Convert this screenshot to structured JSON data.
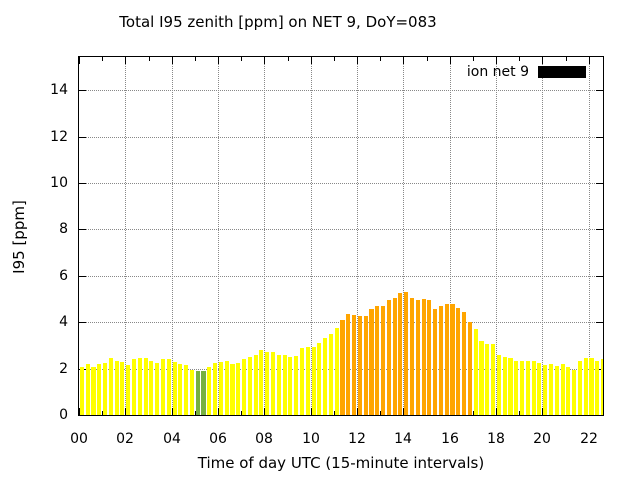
{
  "chart_data": {
    "type": "bar",
    "title": "Total I95 zenith [ppm] on NET 9, DoY=083",
    "xlabel": "Time of day UTC (15-minute intervals)",
    "ylabel": "I95 [ppm]",
    "grid": true,
    "ylim": [
      0,
      15.43
    ],
    "xlim_hours": [
      0,
      22.62
    ],
    "interval_minutes": 15,
    "legend": {
      "label": "ion net 9",
      "position": "top-right",
      "swatch_color": "#000000"
    },
    "y_tick_values": [
      0,
      2,
      4,
      6,
      8,
      10,
      12,
      14
    ],
    "y_tick_labels": [
      "0",
      "2",
      "4",
      "6",
      "8",
      "10",
      "12",
      "14"
    ],
    "y_grid_values": [
      2,
      4,
      6,
      8,
      10,
      12,
      14
    ],
    "x_tick_hours": [
      0,
      2,
      4,
      6,
      8,
      10,
      12,
      14,
      16,
      18,
      20,
      22
    ],
    "x_tick_labels": [
      "00",
      "02",
      "04",
      "06",
      "08",
      "10",
      "12",
      "14",
      "16",
      "18",
      "20",
      "22"
    ],
    "x_minor_tick_hours": [
      1,
      3,
      5,
      7,
      9,
      11,
      13,
      15,
      17,
      19,
      21
    ],
    "x_grid_hours": [
      2,
      4,
      6,
      8,
      10,
      12,
      14,
      16,
      18,
      20,
      22
    ],
    "color_map": {
      "y": "#ffff00",
      "o": "#ffa500",
      "g": "#76b041"
    },
    "times": [
      "00:00",
      "00:15",
      "00:30",
      "00:45",
      "01:00",
      "01:15",
      "01:30",
      "01:45",
      "02:00",
      "02:15",
      "02:30",
      "02:45",
      "03:00",
      "03:15",
      "03:30",
      "03:45",
      "04:00",
      "04:15",
      "04:30",
      "04:45",
      "05:00",
      "05:15",
      "05:30",
      "05:45",
      "06:00",
      "06:15",
      "06:30",
      "06:45",
      "07:00",
      "07:15",
      "07:30",
      "07:45",
      "08:00",
      "08:15",
      "08:30",
      "08:45",
      "09:00",
      "09:15",
      "09:30",
      "09:45",
      "10:00",
      "10:15",
      "10:30",
      "10:45",
      "11:00",
      "11:15",
      "11:30",
      "11:45",
      "12:00",
      "12:15",
      "12:30",
      "12:45",
      "13:00",
      "13:15",
      "13:30",
      "13:45",
      "14:00",
      "14:15",
      "14:30",
      "14:45",
      "15:00",
      "15:15",
      "15:30",
      "15:45",
      "16:00",
      "16:15",
      "16:30",
      "16:45",
      "17:00",
      "17:15",
      "17:30",
      "17:45",
      "18:00",
      "18:15",
      "18:30",
      "18:45",
      "19:00",
      "19:15",
      "19:30",
      "19:45",
      "20:00",
      "20:15",
      "20:30",
      "20:45",
      "21:00",
      "21:15",
      "21:30",
      "21:45",
      "22:00",
      "22:15",
      "22:30"
    ],
    "values": [
      2.05,
      2.2,
      2.05,
      2.2,
      2.25,
      2.45,
      2.35,
      2.3,
      2.15,
      2.4,
      2.45,
      2.45,
      2.35,
      2.25,
      2.4,
      2.4,
      2.3,
      2.2,
      2.15,
      1.95,
      1.9,
      1.9,
      2.05,
      2.25,
      2.3,
      2.35,
      2.2,
      2.25,
      2.4,
      2.5,
      2.6,
      2.8,
      2.7,
      2.7,
      2.6,
      2.6,
      2.5,
      2.55,
      2.9,
      2.95,
      2.95,
      3.1,
      3.3,
      3.5,
      3.75,
      4.1,
      4.35,
      4.3,
      4.25,
      4.25,
      4.55,
      4.7,
      4.7,
      4.95,
      5.05,
      5.25,
      5.3,
      5.05,
      4.95,
      5.0,
      4.95,
      4.55,
      4.7,
      4.8,
      4.8,
      4.6,
      4.45,
      4.0,
      3.7,
      3.2,
      3.05,
      3.05,
      2.6,
      2.5,
      2.45,
      2.35,
      2.35,
      2.35,
      2.35,
      2.25,
      2.15,
      2.2,
      2.1,
      2.2,
      2.05,
      1.95,
      2.35,
      2.45,
      2.45,
      2.35,
      2.4
    ],
    "colors": [
      "y",
      "y",
      "y",
      "y",
      "y",
      "y",
      "y",
      "y",
      "y",
      "y",
      "y",
      "y",
      "y",
      "y",
      "y",
      "y",
      "y",
      "y",
      "y",
      "y",
      "g",
      "g",
      "y",
      "y",
      "y",
      "y",
      "y",
      "y",
      "y",
      "y",
      "y",
      "y",
      "y",
      "y",
      "y",
      "y",
      "y",
      "y",
      "y",
      "y",
      "y",
      "y",
      "y",
      "y",
      "y",
      "o",
      "o",
      "o",
      "o",
      "o",
      "o",
      "o",
      "o",
      "o",
      "o",
      "o",
      "o",
      "o",
      "o",
      "o",
      "o",
      "o",
      "o",
      "o",
      "o",
      "o",
      "o",
      "o",
      "y",
      "y",
      "y",
      "y",
      "y",
      "y",
      "y",
      "y",
      "y",
      "y",
      "y",
      "y",
      "y",
      "y",
      "y",
      "y",
      "y",
      "y",
      "y",
      "y",
      "y",
      "y",
      "y"
    ]
  }
}
